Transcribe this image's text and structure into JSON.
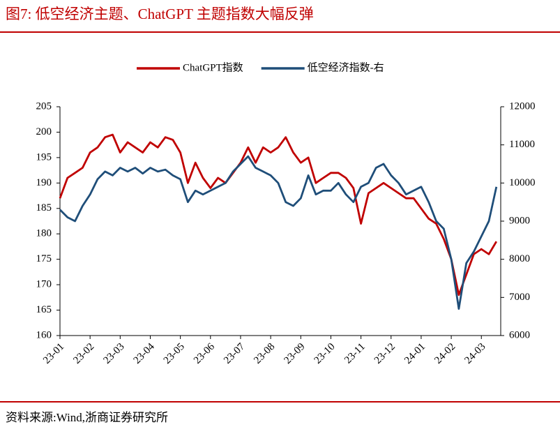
{
  "chart_data": {
    "type": "line",
    "title": "图7:   低空经济主题、ChatGPT 主题指数大幅反弹",
    "source": "资料来源:Wind,浙商证券研究所",
    "categories": [
      "23-01",
      null,
      null,
      null,
      "23-02",
      null,
      null,
      null,
      "23-03",
      null,
      null,
      null,
      "23-04",
      null,
      null,
      null,
      "23-05",
      null,
      null,
      null,
      "23-06",
      null,
      null,
      null,
      "23-07",
      null,
      null,
      null,
      "23-08",
      null,
      null,
      null,
      "23-09",
      null,
      null,
      null,
      "23-10",
      null,
      null,
      null,
      "23-11",
      null,
      null,
      null,
      "23-12",
      null,
      null,
      null,
      "24-01",
      null,
      null,
      null,
      "24-02",
      null,
      null,
      null,
      "24-03",
      null,
      null
    ],
    "series": [
      {
        "name": "ChatGPT指数",
        "color": "#c00000",
        "values": [
          187,
          191,
          192,
          193,
          196,
          197,
          199,
          199.5,
          196,
          198,
          197,
          196,
          198,
          197,
          199,
          198.5,
          196,
          190,
          194,
          191,
          189,
          191,
          190,
          192,
          194,
          197,
          194,
          197,
          196,
          197,
          199,
          196,
          194,
          195,
          190,
          191,
          192,
          192,
          191,
          189,
          182,
          188,
          189,
          190,
          189,
          188,
          187,
          187,
          185,
          183,
          182,
          179,
          175,
          168,
          172,
          176,
          177,
          176,
          178.5
        ]
      },
      {
        "name": "低空经济指数-右",
        "color": "#1f4e79",
        "axis": "y2",
        "values": [
          9300,
          9100,
          9000,
          9400,
          9700,
          10100,
          10300,
          10200,
          10400,
          10300,
          10400,
          10250,
          10400,
          10300,
          10350,
          10200,
          10100,
          9500,
          9800,
          9700,
          9800,
          9900,
          10000,
          10300,
          10500,
          10700,
          10400,
          10300,
          10200,
          10000,
          9500,
          9400,
          9600,
          10200,
          9700,
          9800,
          9800,
          10000,
          9700,
          9500,
          9900,
          10000,
          10400,
          10500,
          10200,
          10000,
          9700,
          9800,
          9900,
          9500,
          9000,
          8800,
          8000,
          6700,
          7900,
          8200,
          8600,
          9000,
          9900
        ]
      }
    ],
    "ylim": [
      160,
      205
    ],
    "yticks": [
      160,
      165,
      170,
      175,
      180,
      185,
      190,
      195,
      200,
      205
    ],
    "y2lim": [
      6000,
      12000
    ],
    "y2ticks": [
      6000,
      7000,
      8000,
      9000,
      10000,
      11000,
      12000
    ],
    "legend": "top"
  }
}
